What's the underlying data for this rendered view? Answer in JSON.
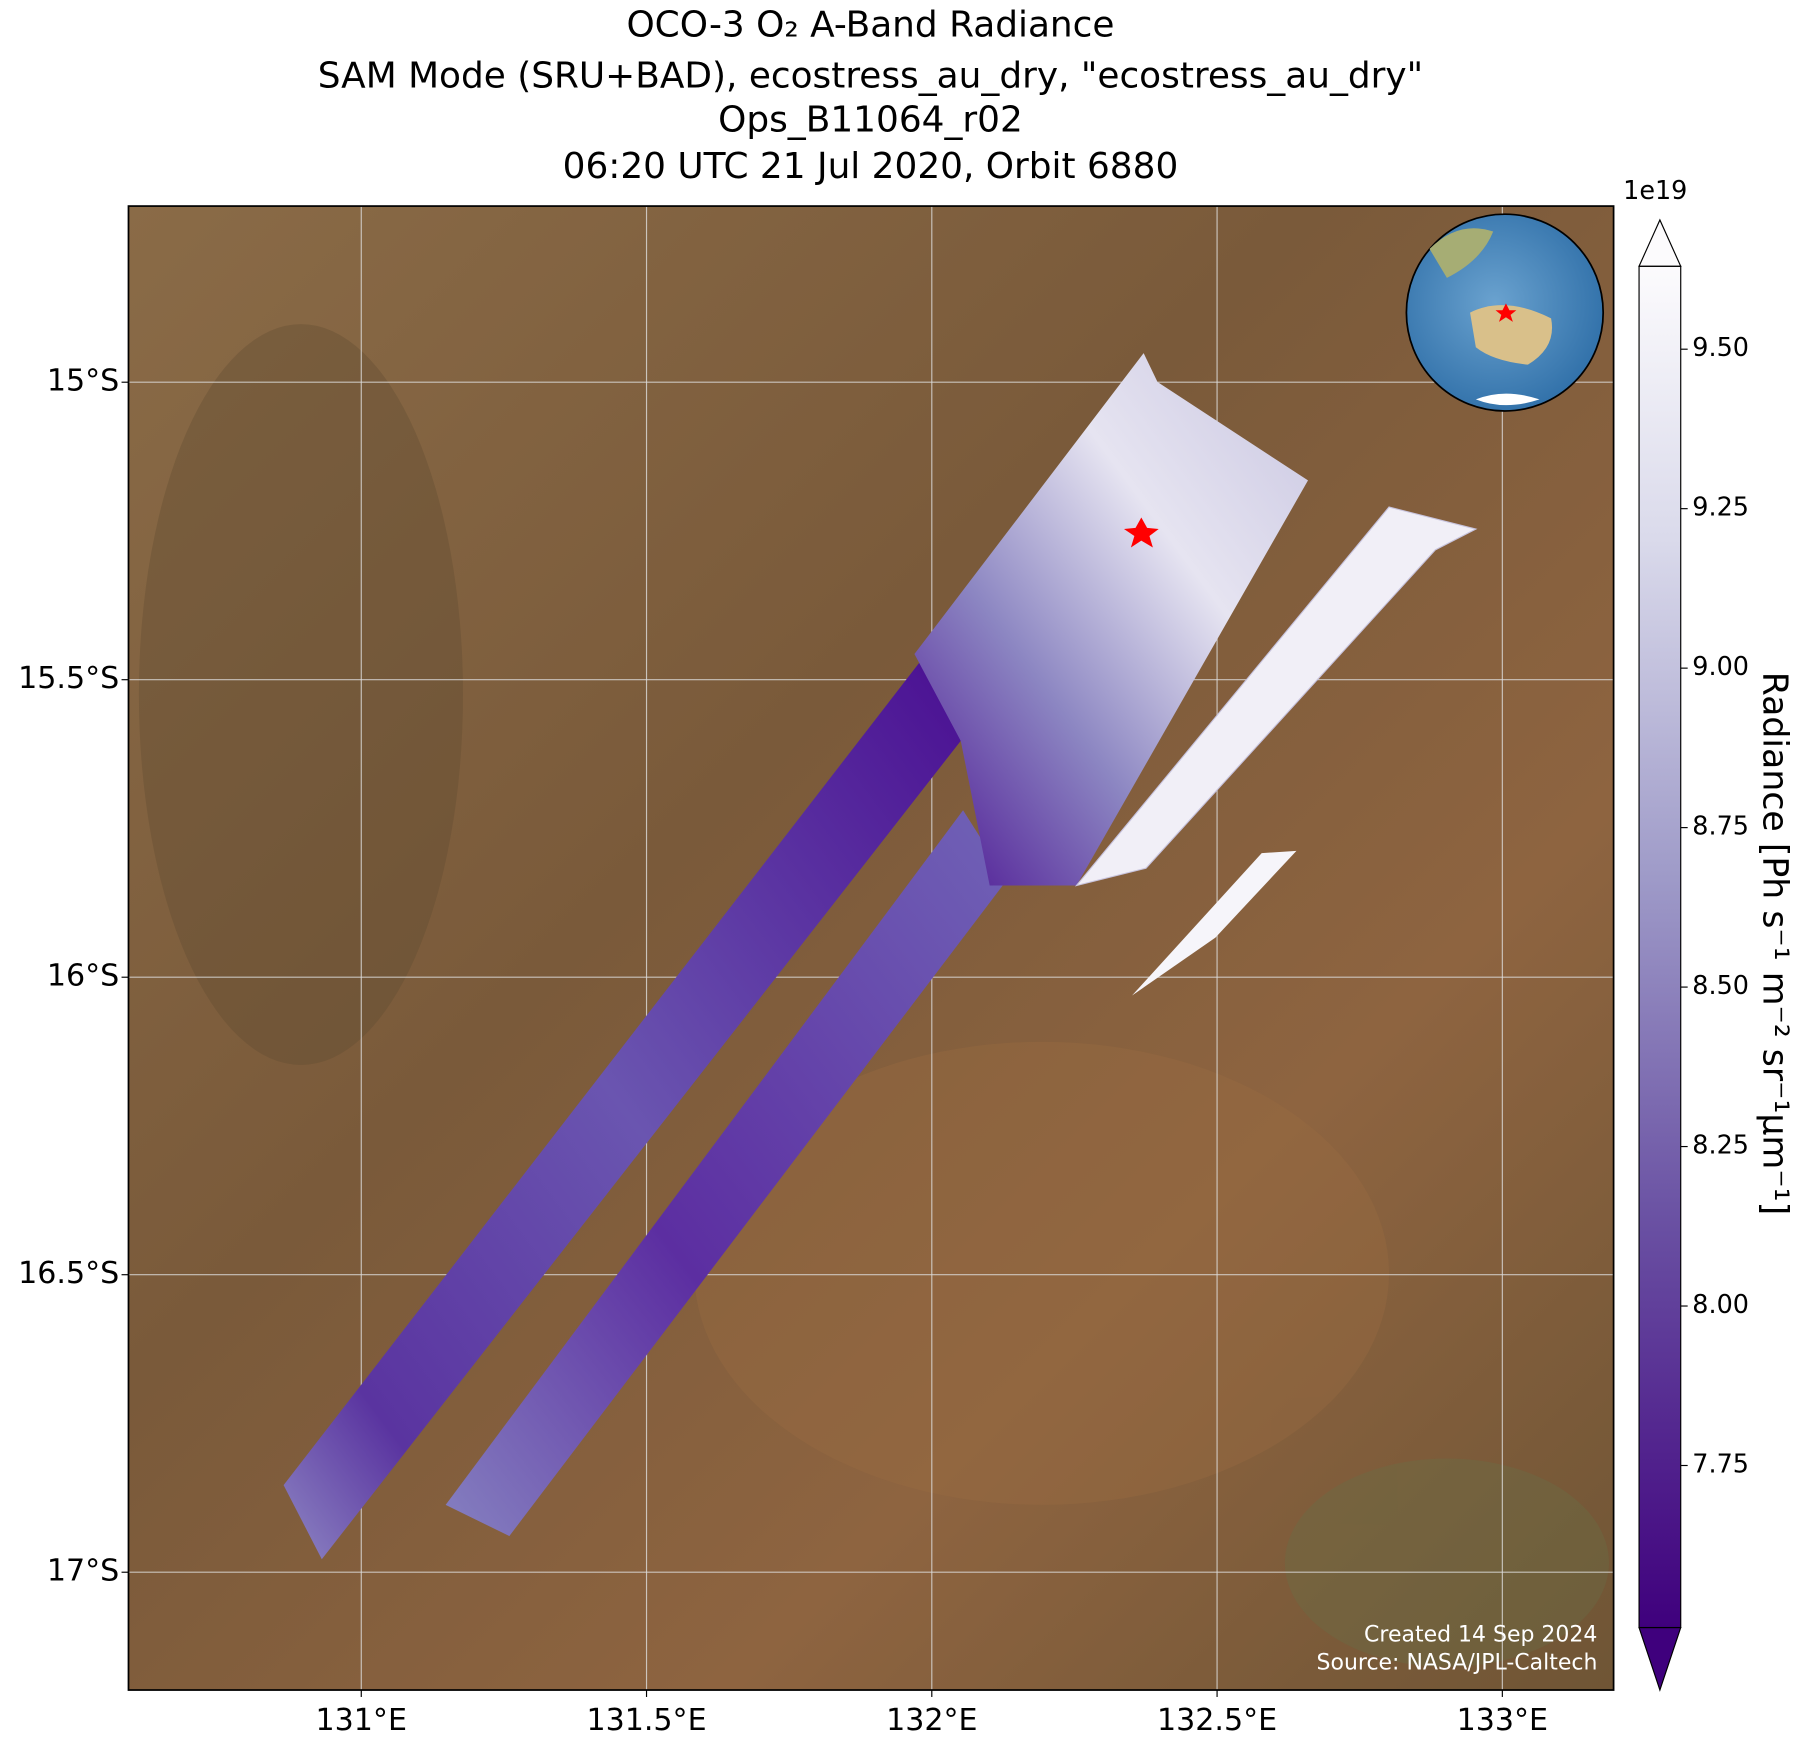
{
  "chart_data": {
    "type": "map",
    "title": [
      "OCO-3 O₂ A-Band Radiance",
      "SAM Mode (SRU+BAD), ecostress_au_dry, \"ecostress_au_dry\"",
      "Ops_B11064_r02",
      "06:20 UTC 21 Jul 2020, Orbit 6880"
    ],
    "xlim": [
      130.592,
      133.195
    ],
    "ylim": [
      -17.198,
      -14.704
    ],
    "xticks": [
      {
        "value": 131,
        "label": "131°E"
      },
      {
        "value": 131.5,
        "label": "131.5°E"
      },
      {
        "value": 132,
        "label": "132°E"
      },
      {
        "value": 132.5,
        "label": "132.5°E"
      },
      {
        "value": 133,
        "label": "133°E"
      }
    ],
    "yticks": [
      {
        "value": -15,
        "label": "15°S"
      },
      {
        "value": -15.5,
        "label": "15.5°S"
      },
      {
        "value": -16,
        "label": "16°S"
      },
      {
        "value": -16.5,
        "label": "16.5°S"
      },
      {
        "value": -17,
        "label": "17°S"
      }
    ],
    "grid": true,
    "colorbar": {
      "label": "Radiance [Ph s⁻¹ m⁻² sr⁻¹μm⁻¹]",
      "exponent": "1e19",
      "clim": [
        7.496,
        9.63
      ],
      "ticks": [
        {
          "value": 7.75,
          "label": "7.75"
        },
        {
          "value": 8.0,
          "label": "8.00"
        },
        {
          "value": 8.25,
          "label": "8.25"
        },
        {
          "value": 8.5,
          "label": "8.50"
        },
        {
          "value": 8.75,
          "label": "8.75"
        },
        {
          "value": 9.0,
          "label": "9.00"
        },
        {
          "value": 9.25,
          "label": "9.25"
        },
        {
          "value": 9.5,
          "label": "9.50"
        }
      ]
    },
    "annotations": [
      "Created 14 Sep 2024",
      "Source: NASA/JPL-Caltech"
    ]
  }
}
